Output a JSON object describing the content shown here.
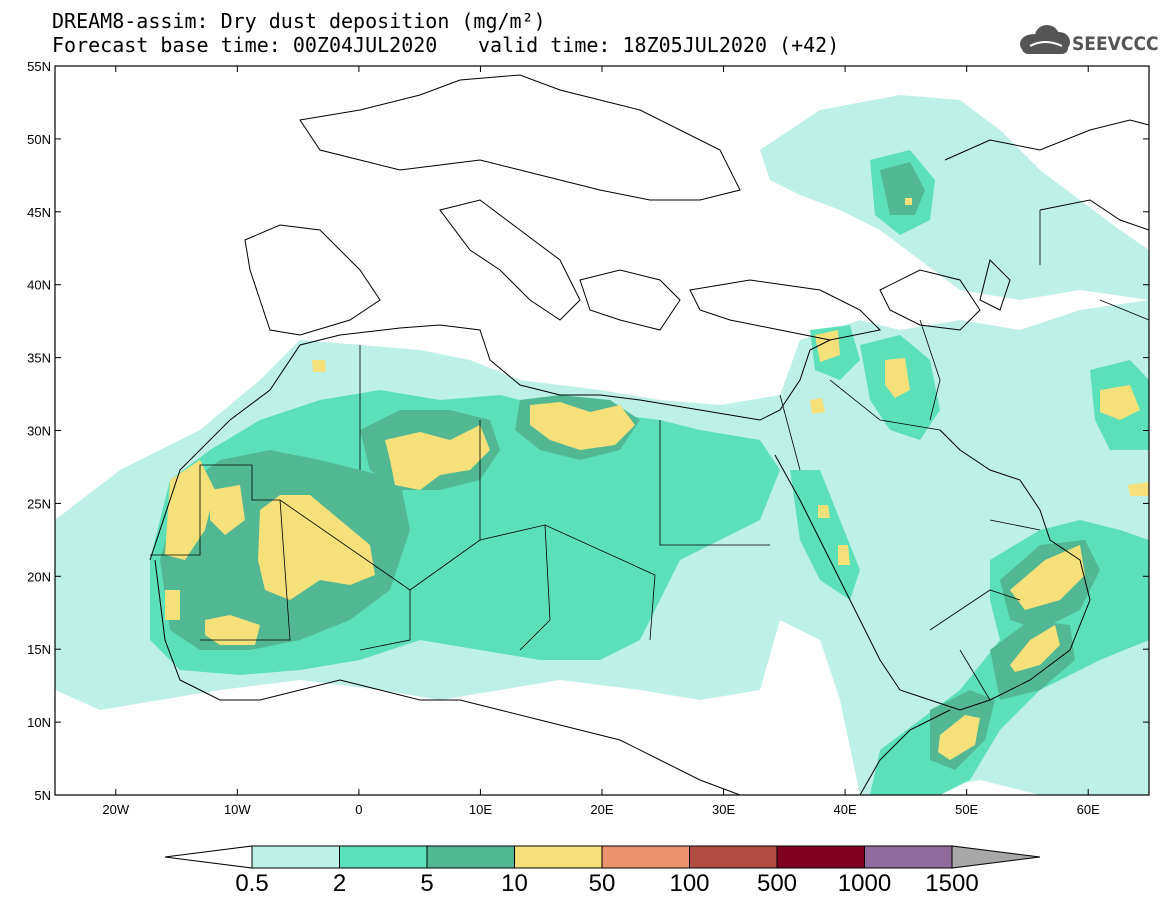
{
  "header": {
    "title_line1": "DREAM8-assim: Dry dust deposition (mg/m²)",
    "title_line2_left": "Forecast base time: 00Z04JUL2020",
    "title_line2_right": "valid time: 18Z05JUL2020 (+42)"
  },
  "logo": {
    "text": "SEEVCCC",
    "icon": "cloud-icon"
  },
  "map": {
    "lon_range": [
      -25,
      65
    ],
    "lat_range": [
      5,
      55
    ],
    "lat_ticks": [
      "55N",
      "50N",
      "45N",
      "40N",
      "35N",
      "30N",
      "25N",
      "20N",
      "15N",
      "10N",
      "5N"
    ],
    "lon_ticks": [
      "20W",
      "10W",
      "0",
      "10E",
      "20E",
      "30E",
      "40E",
      "50E",
      "60E"
    ]
  },
  "colorbar": {
    "labels": [
      "0.5",
      "2",
      "5",
      "10",
      "50",
      "100",
      "500",
      "1000",
      "1500"
    ],
    "colors": [
      "#bdf0e6",
      "#5ce0b9",
      "#52b894",
      "#f5e079",
      "#eb9470",
      "#b04c43",
      "#800020",
      "#8f6b9e",
      "#a8a8a8"
    ],
    "under_color": "#ffffff",
    "over_color": "#a8a8a8"
  }
}
